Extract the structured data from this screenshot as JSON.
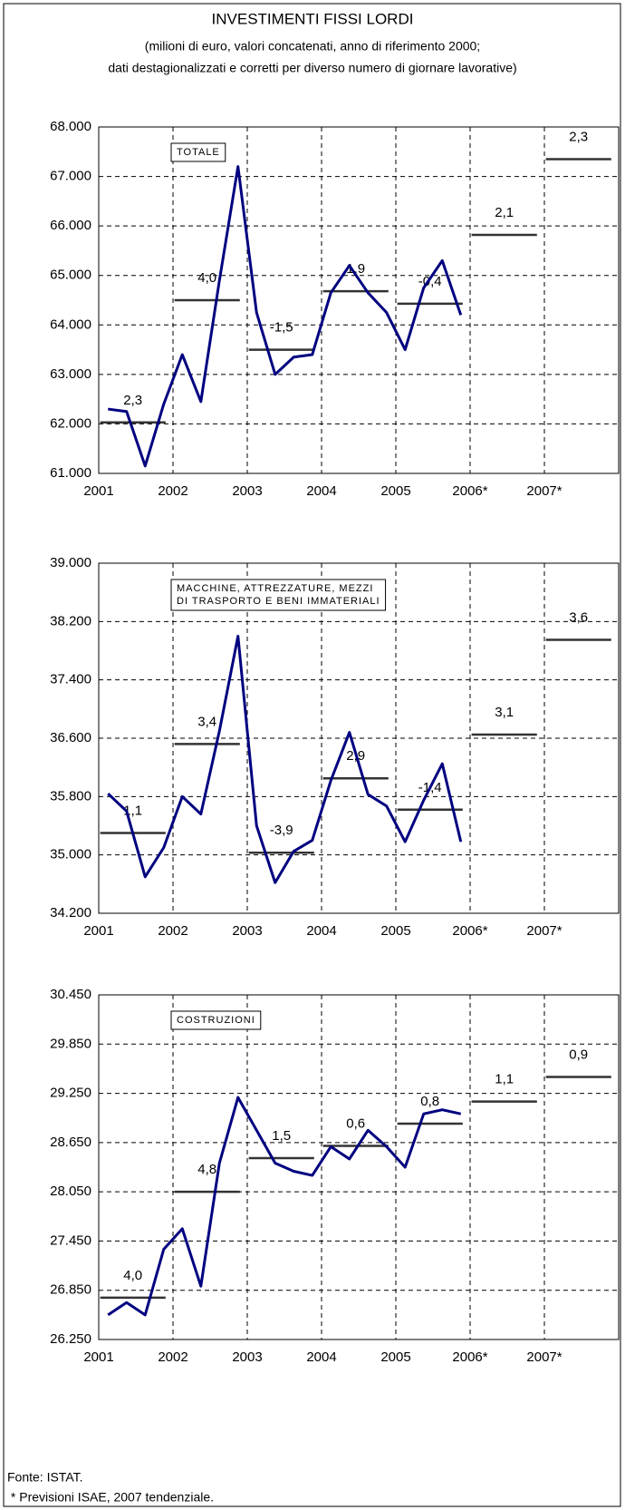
{
  "title": "INVESTIMENTI FISSI LORDI",
  "subtitle": [
    "(milioni di euro, valori concatenati, anno di riferimento 2000;",
    "dati destagionalizzati e corretti per diverso numero di giornare lavorative)"
  ],
  "footer": [
    "Fonte: ISTAT.",
    " * Previsioni ISAE, 2007 tendenziale."
  ],
  "chart_data": [
    {
      "type": "line",
      "box_label": [
        "TOTALE"
      ],
      "grid": true,
      "color": "#000080",
      "x": [
        2001.125,
        2001.375,
        2001.625,
        2001.875,
        2002.125,
        2002.375,
        2002.625,
        2002.875,
        2003.125,
        2003.375,
        2003.625,
        2003.875,
        2004.125,
        2004.375,
        2004.625,
        2004.875,
        2005.125,
        2005.375,
        2005.625,
        2005.875
      ],
      "values": [
        62300,
        62250,
        61150,
        62400,
        63400,
        62450,
        64900,
        67200,
        64250,
        63000,
        63350,
        63400,
        64650,
        65200,
        64650,
        64250,
        63500,
        64750,
        65300,
        64200
      ],
      "annual": {
        "color": "#333333",
        "x": [
          2001,
          2002,
          2003,
          2004,
          2005,
          2006,
          2007
        ],
        "values": [
          62030,
          64500,
          63500,
          64680,
          64430,
          65820,
          67350
        ],
        "labels": [
          "2,3",
          "4,0",
          "-1,5",
          "1,9",
          "-0,4",
          "2,1",
          "2,3"
        ]
      },
      "xlim": [
        2001,
        2008
      ],
      "xticks": [
        2001,
        2002,
        2003,
        2004,
        2005,
        {
          "value": 2006,
          "label": "2006*"
        },
        {
          "value": 2007,
          "label": "2007*"
        }
      ],
      "ylim": [
        61000,
        68000
      ],
      "yticks": [
        {
          "value": 61000,
          "label": "61.000"
        },
        {
          "value": 62000,
          "label": "62.000"
        },
        {
          "value": 63000,
          "label": "63.000"
        },
        {
          "value": 64000,
          "label": "64.000"
        },
        {
          "value": 65000,
          "label": "65.000"
        },
        {
          "value": 66000,
          "label": "66.000"
        },
        {
          "value": 67000,
          "label": "67.000"
        },
        {
          "value": 68000,
          "label": "68.000"
        }
      ]
    },
    {
      "type": "line",
      "box_label": [
        "MACCHINE, ATTREZZATURE, MEZZI",
        "DI TRASPORTO E BENI IMMATERIALI"
      ],
      "grid": true,
      "color": "#000080",
      "x": [
        2001.125,
        2001.375,
        2001.625,
        2001.875,
        2002.125,
        2002.375,
        2002.625,
        2002.875,
        2003.125,
        2003.375,
        2003.625,
        2003.875,
        2004.125,
        2004.375,
        2004.625,
        2004.875,
        2005.125,
        2005.375,
        2005.625,
        2005.875
      ],
      "values": [
        35840,
        35600,
        34700,
        35100,
        35800,
        35560,
        36700,
        38000,
        35400,
        34620,
        35050,
        35200,
        36020,
        36680,
        35830,
        35670,
        35180,
        35750,
        36250,
        35180
      ],
      "annual": {
        "color": "#333333",
        "x": [
          2001,
          2002,
          2003,
          2004,
          2005,
          2006,
          2007
        ],
        "values": [
          35300,
          36520,
          35030,
          36050,
          35620,
          36650,
          37950
        ],
        "labels": [
          "1,1",
          "3,4",
          "-3,9",
          "2,9",
          "-1,4",
          "3,1",
          "3,6"
        ]
      },
      "xlim": [
        2001,
        2008
      ],
      "xticks": [
        2001,
        2002,
        2003,
        2004,
        2005,
        {
          "value": 2006,
          "label": "2006*"
        },
        {
          "value": 2007,
          "label": "2007*"
        }
      ],
      "ylim": [
        34200,
        39000
      ],
      "yticks": [
        {
          "value": 34200,
          "label": "34.200"
        },
        {
          "value": 35000,
          "label": "35.000"
        },
        {
          "value": 35800,
          "label": "35.800"
        },
        {
          "value": 36600,
          "label": "36.600"
        },
        {
          "value": 37400,
          "label": "37.400"
        },
        {
          "value": 38200,
          "label": "38.200"
        },
        {
          "value": 39000,
          "label": "39.000"
        }
      ]
    },
    {
      "type": "line",
      "box_label": [
        "COSTRUZIONI"
      ],
      "grid": true,
      "color": "#000080",
      "x": [
        2001.125,
        2001.375,
        2001.625,
        2001.875,
        2002.125,
        2002.375,
        2002.625,
        2002.875,
        2003.125,
        2003.375,
        2003.625,
        2003.875,
        2004.125,
        2004.375,
        2004.625,
        2004.875,
        2005.125,
        2005.375,
        2005.625,
        2005.875
      ],
      "values": [
        26550,
        26700,
        26550,
        27350,
        27600,
        26900,
        28400,
        29200,
        28800,
        28400,
        28300,
        28250,
        28600,
        28450,
        28800,
        28600,
        28350,
        29000,
        29050,
        29000
      ],
      "annual": {
        "color": "#333333",
        "x": [
          2001,
          2002,
          2003,
          2004,
          2005,
          2006,
          2007
        ],
        "values": [
          26760,
          28050,
          28460,
          28610,
          28880,
          29150,
          29450
        ],
        "labels": [
          "4,0",
          "4,8",
          "1,5",
          "0,6",
          "0,8",
          "1,1",
          "0,9"
        ]
      },
      "xlim": [
        2001,
        2008
      ],
      "xticks": [
        2001,
        2002,
        2003,
        2004,
        2005,
        {
          "value": 2006,
          "label": "2006*"
        },
        {
          "value": 2007,
          "label": "2007*"
        }
      ],
      "ylim": [
        26250,
        30450
      ],
      "yticks": [
        {
          "value": 26250,
          "label": "26.250"
        },
        {
          "value": 26850,
          "label": "26.850"
        },
        {
          "value": 27450,
          "label": "27.450"
        },
        {
          "value": 28050,
          "label": "28.050"
        },
        {
          "value": 28650,
          "label": "28.650"
        },
        {
          "value": 29250,
          "label": "29.250"
        },
        {
          "value": 29850,
          "label": "29.850"
        },
        {
          "value": 30450,
          "label": "30.450"
        }
      ]
    }
  ]
}
